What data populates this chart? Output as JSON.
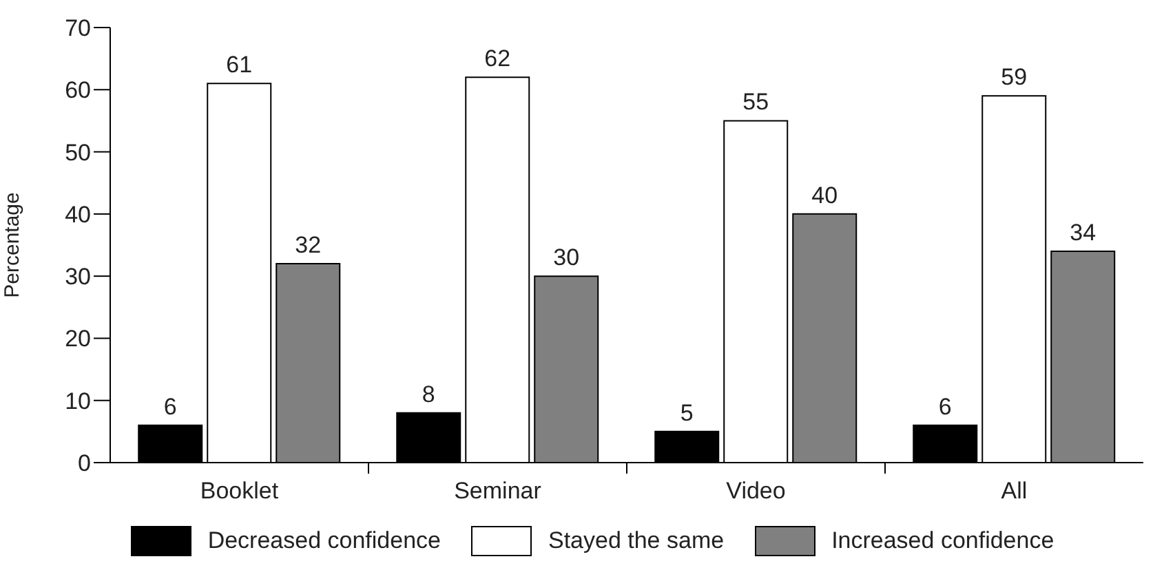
{
  "chart_data": {
    "type": "bar",
    "ylabel": "Percentage",
    "categories": [
      "Booklet",
      "Seminar",
      "Video",
      "All"
    ],
    "series": [
      {
        "name": "Decreased confidence",
        "color": "#000000",
        "values": [
          6,
          8,
          5,
          6
        ]
      },
      {
        "name": "Stayed the same",
        "color": "#ffffff",
        "values": [
          61,
          62,
          55,
          59
        ]
      },
      {
        "name": "Increased confidence",
        "color": "#808080",
        "values": [
          32,
          30,
          40,
          34
        ]
      }
    ],
    "ylim": [
      0,
      70
    ],
    "yticks": [
      0,
      10,
      20,
      30,
      40,
      50,
      60,
      70
    ],
    "data_labels": true,
    "grid": false,
    "legend": "bottom"
  }
}
